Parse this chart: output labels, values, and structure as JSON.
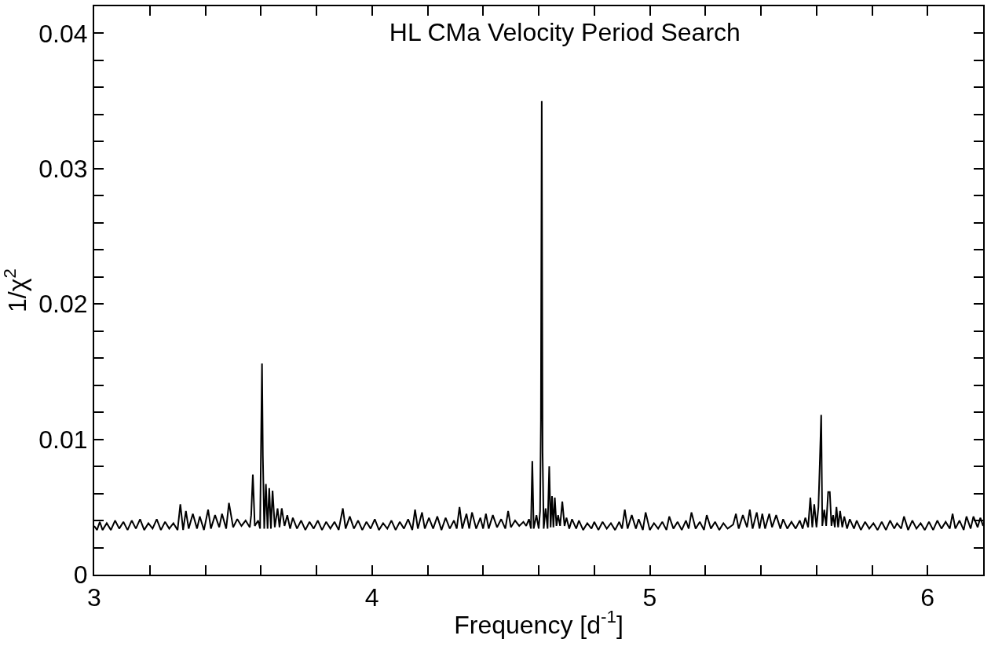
{
  "chart_data": {
    "type": "line",
    "title": "HL CMa Velocity Period Search",
    "xlabel": "Frequency [d$^{-1}$]",
    "ylabel": "1/χ$^{2}$",
    "xlim": [
      3,
      6.2
    ],
    "ylim": [
      0,
      0.042
    ],
    "xticks": [
      3,
      {
        "value": 3.2,
        "label": null
      },
      {
        "value": 3.4,
        "label": null
      },
      {
        "value": 3.6,
        "label": null
      },
      {
        "value": 3.8,
        "label": null
      },
      4,
      {
        "value": 4.2,
        "label": null
      },
      {
        "value": 4.4,
        "label": null
      },
      {
        "value": 4.6,
        "label": null
      },
      {
        "value": 4.8,
        "label": null
      },
      5,
      {
        "value": 5.2,
        "label": null
      },
      {
        "value": 5.4,
        "label": null
      },
      {
        "value": 5.6,
        "label": null
      },
      {
        "value": 5.8,
        "label": null
      },
      6
    ],
    "yticks": [
      0,
      {
        "value": 0.002,
        "label": null
      },
      {
        "value": 0.004,
        "label": null
      },
      {
        "value": 0.006,
        "label": null
      },
      {
        "value": 0.008,
        "label": null
      },
      0.01,
      {
        "value": 0.012,
        "label": null
      },
      {
        "value": 0.014,
        "label": null
      },
      {
        "value": 0.016,
        "label": null
      },
      {
        "value": 0.018,
        "label": null
      },
      0.02,
      {
        "value": 0.022,
        "label": null
      },
      {
        "value": 0.024,
        "label": null
      },
      {
        "value": 0.026,
        "label": null
      },
      {
        "value": 0.028,
        "label": null
      },
      0.03,
      {
        "value": 0.032,
        "label": null
      },
      {
        "value": 0.034,
        "label": null
      },
      {
        "value": 0.036,
        "label": null
      },
      {
        "value": 0.038,
        "label": null
      },
      0.04
    ],
    "marker": "none",
    "line_style": "solid",
    "series": [
      {
        "color": "#000000",
        "x": [
          3.0,
          3.01,
          3.02,
          3.03,
          3.045,
          3.06,
          3.075,
          3.09,
          3.105,
          3.12,
          3.135,
          3.15,
          3.165,
          3.18,
          3.195,
          3.21,
          3.225,
          3.24,
          3.255,
          3.27,
          3.285,
          3.3,
          3.31,
          3.32,
          3.33,
          3.34,
          3.355,
          3.37,
          3.38,
          3.395,
          3.41,
          3.42,
          3.435,
          3.45,
          3.46,
          3.475,
          3.485,
          3.5,
          3.515,
          3.53,
          3.545,
          3.56,
          3.565,
          3.571,
          3.578,
          3.59,
          3.597,
          3.604,
          3.607,
          3.612,
          3.618,
          3.624,
          3.63,
          3.636,
          3.642,
          3.65,
          3.66,
          3.667,
          3.675,
          3.685,
          3.695,
          3.705,
          3.715,
          3.73,
          3.745,
          3.76,
          3.775,
          3.79,
          3.805,
          3.82,
          3.835,
          3.85,
          3.865,
          3.88,
          3.895,
          3.905,
          3.92,
          3.935,
          3.95,
          3.965,
          3.98,
          3.995,
          4.01,
          4.025,
          4.04,
          4.055,
          4.07,
          4.085,
          4.1,
          4.115,
          4.13,
          4.145,
          4.155,
          4.165,
          4.18,
          4.19,
          4.205,
          4.22,
          4.235,
          4.25,
          4.265,
          4.28,
          4.295,
          4.305,
          4.315,
          4.325,
          4.34,
          4.35,
          4.36,
          4.375,
          4.39,
          4.4,
          4.41,
          4.42,
          4.435,
          4.45,
          4.465,
          4.48,
          4.49,
          4.5,
          4.515,
          4.53,
          4.545,
          4.555,
          4.565,
          4.572,
          4.577,
          4.582,
          4.592,
          4.6,
          4.605,
          4.608,
          4.611,
          4.614,
          4.618,
          4.625,
          4.632,
          4.638,
          4.643,
          4.648,
          4.653,
          4.658,
          4.664,
          4.67,
          4.677,
          4.685,
          4.693,
          4.7,
          4.71,
          4.72,
          4.735,
          4.745,
          4.76,
          4.775,
          4.79,
          4.8,
          4.815,
          4.83,
          4.845,
          4.86,
          4.875,
          4.89,
          4.9,
          4.91,
          4.92,
          4.935,
          4.95,
          4.96,
          4.975,
          4.985,
          5.0,
          5.015,
          5.03,
          5.045,
          5.06,
          5.07,
          5.085,
          5.1,
          5.115,
          5.13,
          5.14,
          5.15,
          5.165,
          5.18,
          5.195,
          5.205,
          5.22,
          5.235,
          5.25,
          5.265,
          5.28,
          5.3,
          5.31,
          5.32,
          5.335,
          5.35,
          5.36,
          5.37,
          5.385,
          5.395,
          5.405,
          5.415,
          5.43,
          5.44,
          5.455,
          5.47,
          5.48,
          5.495,
          5.51,
          5.525,
          5.54,
          5.55,
          5.56,
          5.57,
          5.578,
          5.585,
          5.592,
          5.6,
          5.607,
          5.612,
          5.617,
          5.621,
          5.628,
          5.635,
          5.642,
          5.648,
          5.654,
          5.66,
          5.666,
          5.672,
          5.678,
          5.685,
          5.693,
          5.7,
          5.71,
          5.72,
          5.735,
          5.745,
          5.76,
          5.775,
          5.79,
          5.805,
          5.82,
          5.835,
          5.85,
          5.865,
          5.88,
          5.89,
          5.905,
          5.915,
          5.93,
          5.945,
          5.96,
          5.975,
          5.99,
          6.005,
          6.02,
          6.035,
          6.05,
          6.065,
          6.08,
          6.09,
          6.1,
          6.115,
          6.13,
          6.14,
          6.155,
          6.165,
          6.18,
          6.19,
          6.2
        ],
        "values": [
          0.0036,
          0.0033,
          0.0039,
          0.0033,
          0.0038,
          0.0033,
          0.004,
          0.0034,
          0.0039,
          0.0033,
          0.004,
          0.0034,
          0.0041,
          0.0033,
          0.0038,
          0.0034,
          0.0041,
          0.0033,
          0.0039,
          0.0034,
          0.0038,
          0.0033,
          0.0052,
          0.0033,
          0.0047,
          0.0034,
          0.0045,
          0.0034,
          0.0043,
          0.0033,
          0.0048,
          0.0034,
          0.0044,
          0.0035,
          0.0045,
          0.0034,
          0.0053,
          0.0035,
          0.0041,
          0.0036,
          0.004,
          0.0035,
          0.0044,
          0.0074,
          0.0036,
          0.004,
          0.0034,
          0.0156,
          0.0088,
          0.0034,
          0.0067,
          0.0034,
          0.0064,
          0.0034,
          0.0062,
          0.0035,
          0.0049,
          0.0035,
          0.0049,
          0.0036,
          0.0044,
          0.0034,
          0.0042,
          0.0034,
          0.004,
          0.0033,
          0.0039,
          0.0034,
          0.004,
          0.0033,
          0.0039,
          0.0034,
          0.0039,
          0.0033,
          0.0049,
          0.0034,
          0.0043,
          0.0034,
          0.004,
          0.0033,
          0.0039,
          0.0034,
          0.0041,
          0.0033,
          0.0038,
          0.0034,
          0.004,
          0.0033,
          0.0039,
          0.0034,
          0.0041,
          0.0033,
          0.0048,
          0.0034,
          0.0046,
          0.0034,
          0.0042,
          0.0034,
          0.0043,
          0.0033,
          0.0042,
          0.0034,
          0.004,
          0.0034,
          0.005,
          0.0034,
          0.0045,
          0.0034,
          0.0046,
          0.0034,
          0.0042,
          0.0034,
          0.0045,
          0.0034,
          0.0044,
          0.0035,
          0.0041,
          0.0034,
          0.0047,
          0.0035,
          0.004,
          0.0036,
          0.0039,
          0.0036,
          0.0041,
          0.0034,
          0.0084,
          0.0034,
          0.0044,
          0.0034,
          0.0047,
          0.0114,
          0.035,
          0.009,
          0.0034,
          0.0049,
          0.0034,
          0.008,
          0.0035,
          0.0058,
          0.0035,
          0.0057,
          0.0036,
          0.0044,
          0.0036,
          0.0054,
          0.0036,
          0.0042,
          0.0034,
          0.0041,
          0.0034,
          0.004,
          0.0033,
          0.0038,
          0.0034,
          0.0039,
          0.0033,
          0.0039,
          0.0034,
          0.0038,
          0.0033,
          0.0039,
          0.0034,
          0.0048,
          0.0034,
          0.0044,
          0.0034,
          0.0041,
          0.0033,
          0.0046,
          0.0033,
          0.0038,
          0.0034,
          0.0039,
          0.0033,
          0.0043,
          0.0034,
          0.0039,
          0.0033,
          0.004,
          0.0034,
          0.0046,
          0.0034,
          0.0039,
          0.0033,
          0.0044,
          0.0034,
          0.0039,
          0.0033,
          0.0038,
          0.0034,
          0.0037,
          0.0045,
          0.0034,
          0.0044,
          0.0035,
          0.0048,
          0.0034,
          0.0046,
          0.0034,
          0.0045,
          0.0034,
          0.0045,
          0.0035,
          0.0044,
          0.0034,
          0.0041,
          0.0034,
          0.0039,
          0.0034,
          0.004,
          0.0034,
          0.0042,
          0.0035,
          0.0057,
          0.0035,
          0.0052,
          0.0035,
          0.005,
          0.0082,
          0.0118,
          0.0036,
          0.0048,
          0.0036,
          0.0061,
          0.0061,
          0.0036,
          0.0044,
          0.0035,
          0.005,
          0.0035,
          0.0047,
          0.0035,
          0.0043,
          0.0034,
          0.0041,
          0.0034,
          0.004,
          0.0033,
          0.0039,
          0.0034,
          0.0038,
          0.0033,
          0.0039,
          0.0033,
          0.004,
          0.0034,
          0.0038,
          0.0034,
          0.0043,
          0.0033,
          0.004,
          0.0034,
          0.0038,
          0.0033,
          0.0039,
          0.0033,
          0.004,
          0.0034,
          0.0039,
          0.0034,
          0.0045,
          0.0034,
          0.004,
          0.0033,
          0.0043,
          0.0034,
          0.0043,
          0.0035,
          0.0042,
          0.0036
        ]
      }
    ]
  }
}
